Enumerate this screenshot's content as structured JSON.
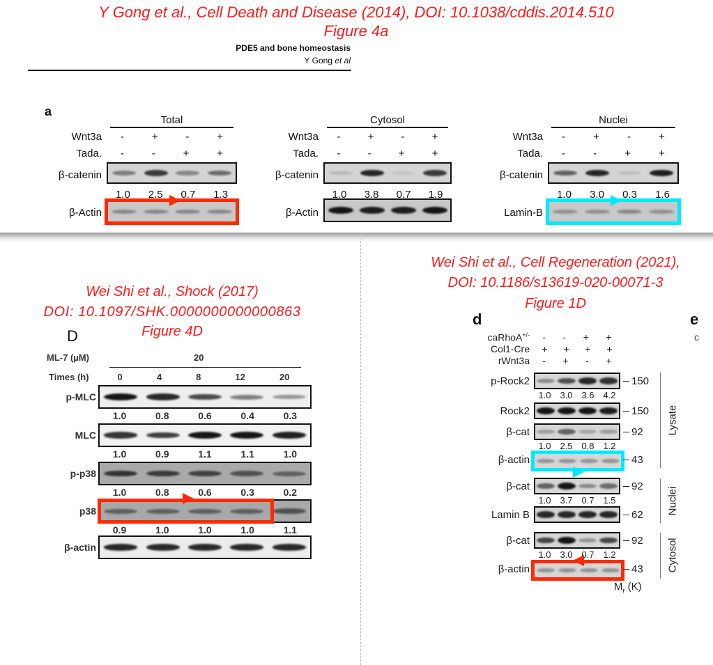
{
  "colors": {
    "citation": "#ff1a1a",
    "highlight_red": "#ff2a00",
    "highlight_cyan": "#00eaff"
  },
  "top": {
    "citation_line1": "Y Gong et al., Cell Death and Disease (2014), DOI: 10.1038/cddis.2014.510",
    "citation_line2": "Figure 4a",
    "running_title": "PDE5 and bone homeostasis",
    "running_author_name": "Y Gong ",
    "running_author_etal": "et al",
    "panel_label": "a",
    "row_labels": {
      "wnt3a": "Wnt3a",
      "tada": "Tada."
    },
    "groups": [
      {
        "title": "Total",
        "wnt3a": [
          "-",
          "+",
          "-",
          "+"
        ],
        "tada": [
          "-",
          "-",
          "+",
          "+"
        ],
        "blot1": "β-catenin",
        "quant": [
          "1.0",
          "2.5",
          "0.7",
          "1.3"
        ],
        "blot2": "β-Actin",
        "blot2_highlight": "red",
        "arrow": "right"
      },
      {
        "title": "Cytosol",
        "wnt3a": [
          "-",
          "+",
          "-",
          "+"
        ],
        "tada": [
          "-",
          "-",
          "+",
          "+"
        ],
        "blot1": "β-catenin",
        "quant": [
          "1.0",
          "3.8",
          "0.7",
          "1.9"
        ],
        "blot2": "β-Actin",
        "blot2_highlight": "none"
      },
      {
        "title": "Nuclei",
        "wnt3a": [
          "-",
          "+",
          "-",
          "+"
        ],
        "tada": [
          "-",
          "-",
          "+",
          "+"
        ],
        "blot1": "β-catenin",
        "quant": [
          "1.0",
          "3.0",
          "0.3",
          "1.6"
        ],
        "blot2": "Lamin-B",
        "blot2_highlight": "cyan",
        "arrow": "right"
      }
    ]
  },
  "left": {
    "citation_line1": "Wei Shi et al., Shock (2017)",
    "citation_line2": "DOI: 10.1097/SHK.0000000000000863",
    "citation_line3": "Figure 4D",
    "panel_label": "D",
    "ml7_label": "ML-7 (µM)",
    "ml7_value": "20",
    "times_label": "Times (h)",
    "times": [
      "0",
      "4",
      "8",
      "12",
      "20"
    ],
    "blots": [
      {
        "label": "p-MLC",
        "quant": [
          "1.0",
          "0.8",
          "0.6",
          "0.4",
          "0.3"
        ]
      },
      {
        "label": "MLC",
        "quant": [
          "1.0",
          "0.9",
          "1.1",
          "1.1",
          "1.0"
        ]
      },
      {
        "label": "p-p38",
        "quant": [
          "1.0",
          "0.8",
          "0.6",
          "0.3",
          "0.2"
        ]
      },
      {
        "label": "p38",
        "quant": [
          "0.9",
          "1.0",
          "1.0",
          "1.0",
          "1.1"
        ],
        "highlight": "red",
        "highlight_lanes": "1-4",
        "arrow": "right"
      },
      {
        "label": "β-actin"
      }
    ]
  },
  "right": {
    "citation_line1": "Wei Shi et al., Cell Regeneration (2021),",
    "citation_line2": "DOI: 10.1186/s13619-020-00071-3",
    "citation_line3": "Figure 1D",
    "panel_label": "d",
    "next_panel_label": "e",
    "next_panel_partial": "c",
    "conditions": [
      {
        "label": "caRhoA",
        "sup": "+/-",
        "values": [
          "-",
          "-",
          "+",
          "+"
        ]
      },
      {
        "label": "Col1-Cre",
        "values": [
          "+",
          "+",
          "+",
          "+"
        ]
      },
      {
        "label": "rWnt3a",
        "values": [
          "-",
          "+",
          "-",
          "+"
        ]
      }
    ],
    "blots": [
      {
        "label": "p-Rock2",
        "marker": "150",
        "quant": [
          "1.0",
          "3.0",
          "3.6",
          "4.2"
        ]
      },
      {
        "label": "Rock2",
        "marker": "150"
      },
      {
        "label": "β-cat",
        "marker": "92",
        "quant": [
          "1.0",
          "2.5",
          "0.8",
          "1.2"
        ]
      },
      {
        "label": "β-actin",
        "marker": "43",
        "highlight": "cyan",
        "arrow": "right"
      },
      {
        "label": "β-cat",
        "marker": "92",
        "quant": [
          "1.0",
          "3.7",
          "0.7",
          "1.5"
        ]
      },
      {
        "label": "Lamin B",
        "marker": "62"
      },
      {
        "label": "β-cat",
        "marker": "92",
        "quant": [
          "1.0",
          "3.0",
          "0.7",
          "1.2"
        ]
      },
      {
        "label": "β-actin",
        "marker": "43",
        "highlight": "red",
        "arrow": "left"
      }
    ],
    "fractions": [
      "Lysate",
      "Nuclei",
      "Cytosol"
    ],
    "mr_label": "M",
    "mr_sub": "r",
    "mr_unit": " (K)"
  }
}
